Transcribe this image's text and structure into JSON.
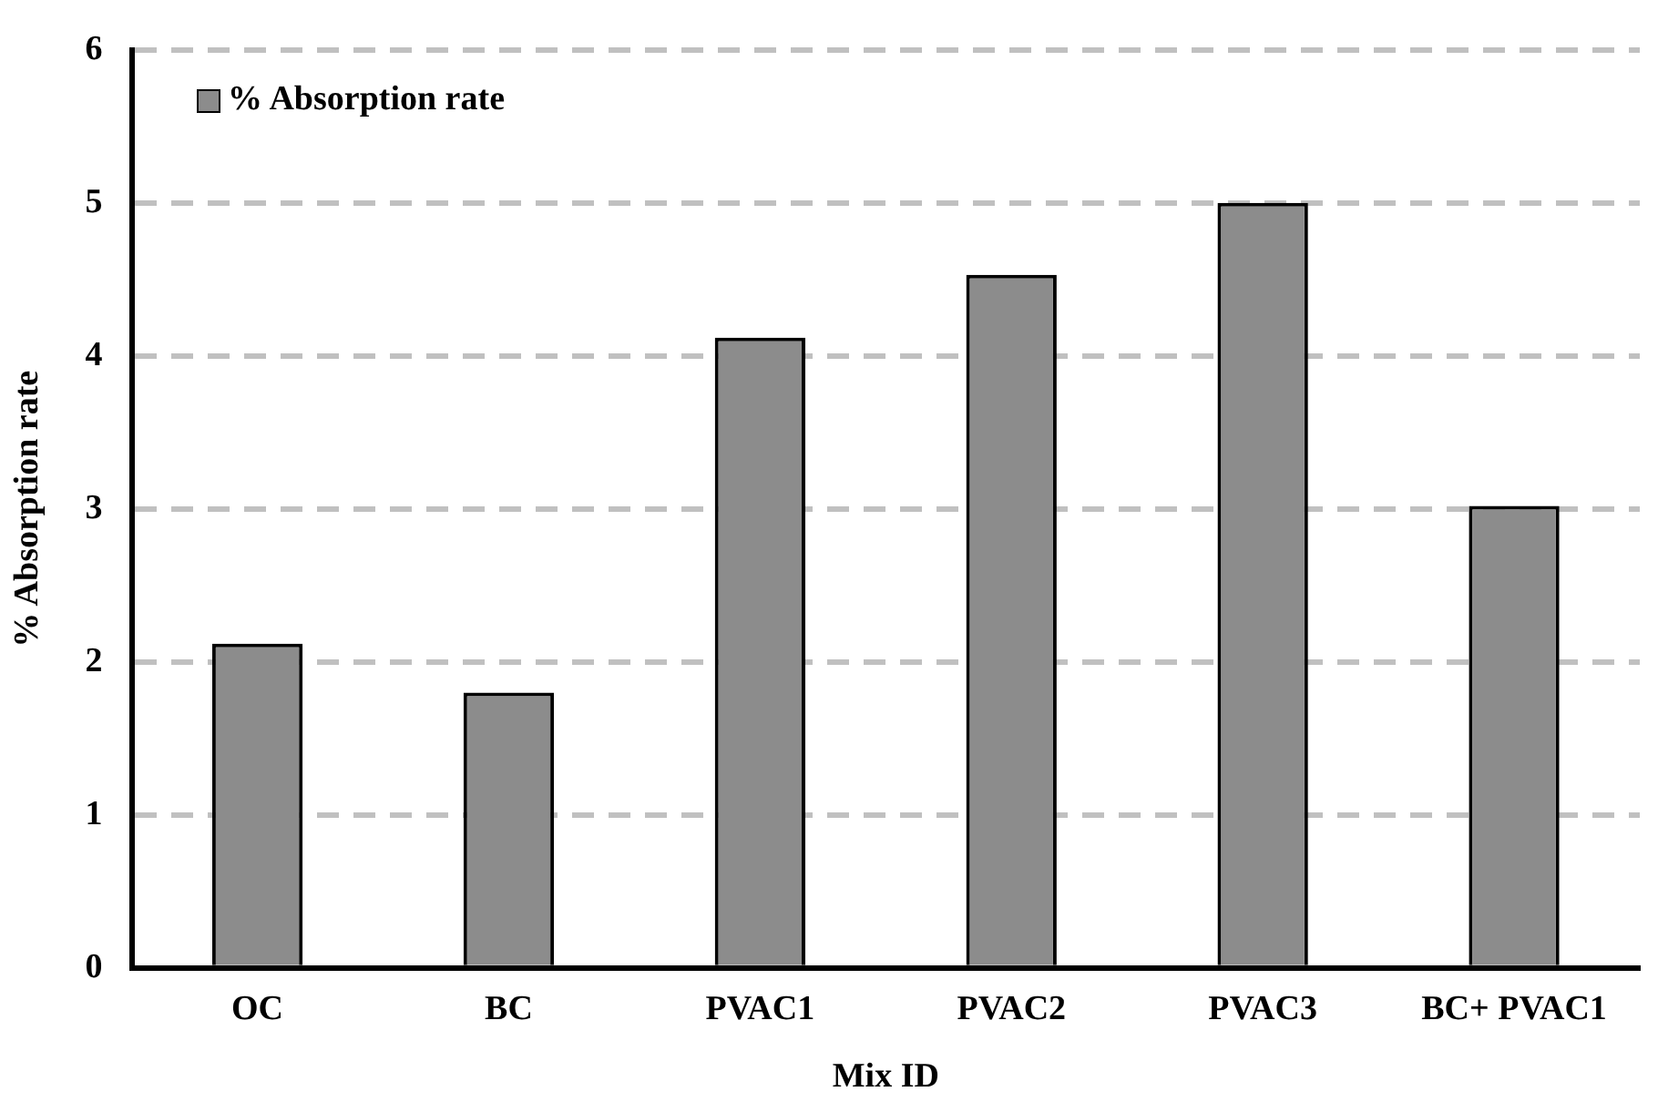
{
  "chart_data": {
    "type": "bar",
    "xlabel": "Mix ID",
    "ylabel": "% Absorption rate",
    "categories": [
      "OC",
      "BC",
      "PVAC1",
      "PVAC2",
      "PVAC3",
      "BC+ PVAC1"
    ],
    "series": [
      {
        "name": "% Absorption rate",
        "color": "#8c8c8c",
        "values": [
          2.12,
          1.8,
          4.12,
          4.53,
          5.0,
          3.02
        ]
      }
    ],
    "ylim": [
      0,
      6
    ],
    "yticks": [
      0,
      1,
      2,
      3,
      4,
      5,
      6
    ],
    "grid": "y",
    "legend": "top left"
  }
}
